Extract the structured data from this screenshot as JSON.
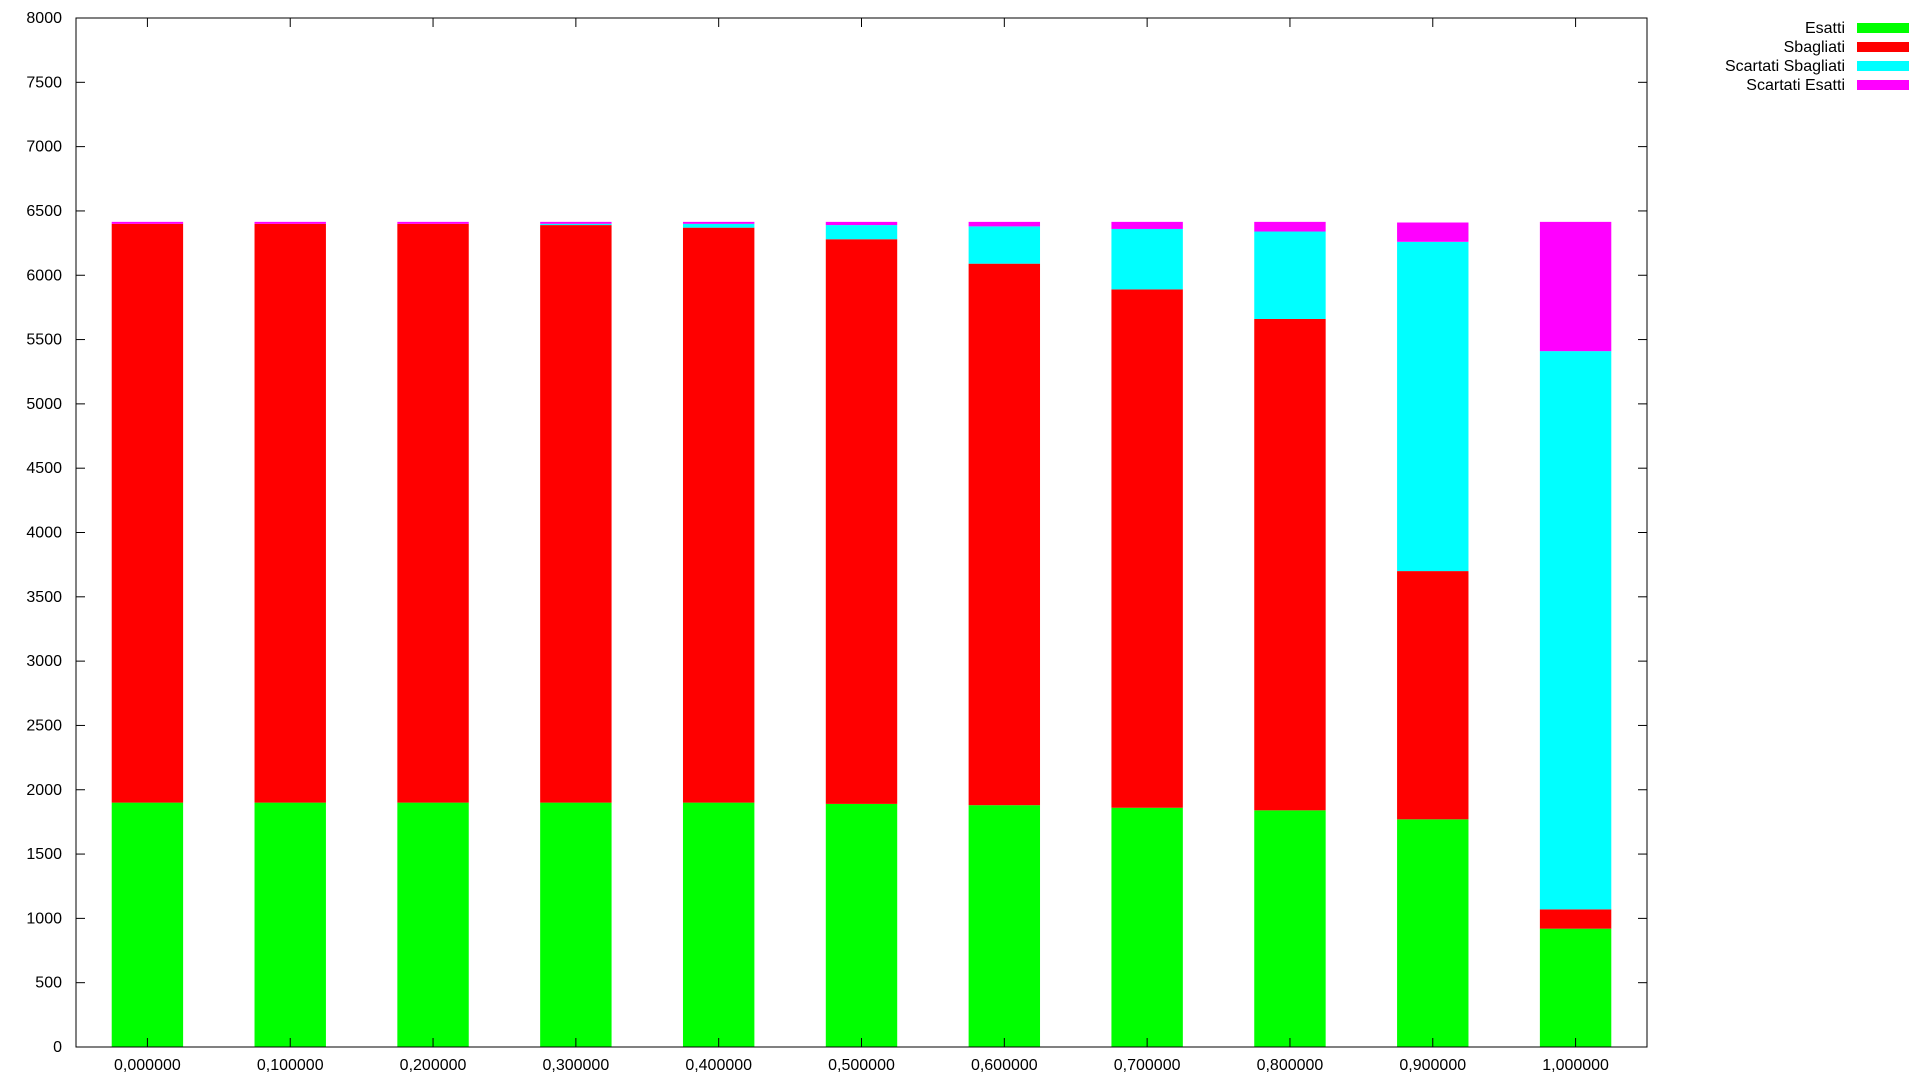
{
  "chart_data": {
    "type": "bar",
    "stacked": true,
    "title": "",
    "xlabel": "",
    "ylabel": "",
    "ylim": [
      0,
      8000
    ],
    "yticks": [
      0,
      500,
      1000,
      1500,
      2000,
      2500,
      3000,
      3500,
      4000,
      4500,
      5000,
      5500,
      6000,
      6500,
      7000,
      7500,
      8000
    ],
    "grid": false,
    "legend_position": "top-right outside",
    "categories": [
      "0,000000",
      "0,100000",
      "0,200000",
      "0,300000",
      "0,400000",
      "0,500000",
      "0,600000",
      "0,700000",
      "0,800000",
      "0,900000",
      "1,000000"
    ],
    "series": [
      {
        "name": "Esatti",
        "color": "#00ff00",
        "values": [
          1900,
          1900,
          1900,
          1900,
          1900,
          1890,
          1880,
          1860,
          1840,
          1770,
          920
        ]
      },
      {
        "name": "Sbagliati",
        "color": "#ff0000",
        "values": [
          4500,
          4500,
          4500,
          4490,
          4470,
          4390,
          4210,
          4030,
          3820,
          1930,
          150
        ]
      },
      {
        "name": "Scartati Sbagliati",
        "color": "#00ffff",
        "values": [
          0,
          0,
          0,
          10,
          30,
          110,
          290,
          470,
          680,
          2560,
          4340
        ]
      },
      {
        "name": "Scartati Esatti",
        "color": "#ff00ff",
        "values": [
          15,
          15,
          15,
          15,
          15,
          25,
          35,
          55,
          75,
          150,
          1005
        ]
      }
    ]
  }
}
